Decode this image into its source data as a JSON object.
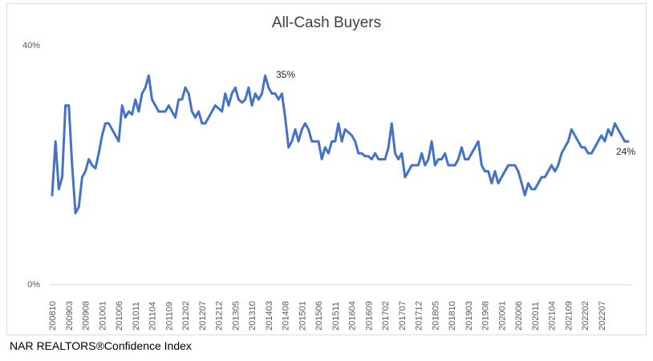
{
  "chart_data": {
    "type": "line",
    "title": "All-Cash Buyers",
    "xlabel": "",
    "ylabel": "",
    "ylim": [
      0,
      40
    ],
    "y_ticks": [
      "40%",
      "0%"
    ],
    "grid": false,
    "legend": "none",
    "line_color": "#4472c4",
    "x_tick_labels": [
      "200810",
      "200903",
      "200908",
      "201001",
      "201006",
      "201011",
      "201104",
      "201109",
      "201202",
      "201207",
      "201212",
      "201305",
      "201310",
      "201403",
      "201408",
      "201501",
      "201506",
      "201511",
      "201604",
      "201609",
      "201702",
      "201707",
      "201712",
      "201805",
      "201810",
      "201903",
      "201908",
      "202001",
      "202006",
      "202011",
      "202104",
      "202109",
      "202202",
      "202207"
    ],
    "x_start": "2008-10",
    "series": [
      {
        "values": [
          15,
          24,
          16,
          18,
          30,
          30,
          20,
          12,
          13,
          18,
          19,
          21,
          20,
          19.5,
          22,
          25,
          27,
          27,
          26,
          25,
          24,
          30,
          28,
          29,
          28.5,
          31,
          29,
          32,
          33,
          35,
          31,
          30,
          29,
          29,
          29,
          30,
          29,
          28,
          31,
          31,
          33,
          32,
          29,
          28,
          29,
          27,
          27,
          28,
          29,
          30,
          29.5,
          29,
          32,
          30,
          32,
          33,
          31,
          30.5,
          31,
          33,
          30,
          32,
          31,
          32,
          35,
          33,
          32,
          32,
          31,
          32,
          28,
          23,
          24,
          26,
          24,
          26,
          27,
          26,
          24,
          24,
          24,
          21,
          23,
          22,
          24,
          24,
          27,
          24,
          26,
          25.5,
          25,
          24,
          22,
          22,
          21.5,
          21.5,
          21,
          22,
          21,
          21,
          21,
          23,
          27,
          22,
          21,
          22,
          18,
          19,
          20,
          20,
          20,
          22,
          20,
          21,
          24,
          20,
          21,
          21,
          22,
          20,
          20,
          20,
          21,
          23,
          21,
          21,
          22,
          23,
          24,
          20,
          19,
          19,
          17,
          19,
          17,
          18,
          19,
          20,
          20,
          20,
          19,
          17,
          15,
          17,
          16,
          16,
          17,
          18,
          18,
          19,
          20,
          19,
          20,
          22,
          23,
          24,
          26,
          25,
          24,
          23,
          23,
          22,
          22,
          23,
          24,
          25,
          24,
          26,
          25,
          27,
          26,
          25,
          24,
          24
        ]
      }
    ],
    "annotations": [
      {
        "text": "35%",
        "point": "201404"
      },
      {
        "text": "24%",
        "point": "202207"
      }
    ]
  },
  "footer": {
    "source": "NAR REALTORS®Confidence Index"
  }
}
